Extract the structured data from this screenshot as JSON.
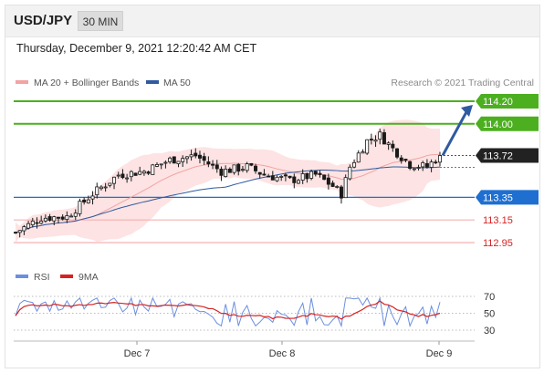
{
  "header": {
    "pair": "USD/JPY",
    "interval": "30 MIN",
    "datetime": "Thursday, December 9, 2021 12:20:42 AM CET"
  },
  "legend": {
    "ma20_bb": "MA 20 + Bollinger Bands",
    "ma50": "MA 50",
    "credit": "Research © 2021 Trading Central",
    "rsi": "RSI",
    "rsi_ma": "9MA"
  },
  "colors": {
    "resistance": "#4caf1f",
    "support": "#1f6fd0",
    "target_line": "#f4b2b2",
    "candle": "#1a1a1a",
    "ma20": "#f2a3a3",
    "ma50": "#2f5aa0",
    "bollinger_fill": "#fde3e3",
    "rsi": "#6b8fe0",
    "rsi_ma": "#d62222",
    "last_price_box": "#222222"
  },
  "chart_data": [
    {
      "type": "candlestick",
      "x_ticks": [
        "Dec 7",
        "Dec 8",
        "Dec 9"
      ],
      "ylim": [
        112.82,
        114.28
      ],
      "last_price": 113.72,
      "levels": [
        {
          "label": "114.20",
          "value": 114.2,
          "kind": "resistance"
        },
        {
          "label": "114.00",
          "value": 114.0,
          "kind": "resistance"
        },
        {
          "label": "113.35",
          "value": 113.35,
          "kind": "support"
        },
        {
          "label": "113.15",
          "value": 113.15,
          "kind": "support"
        },
        {
          "label": "112.95",
          "value": 112.95,
          "kind": "support"
        }
      ],
      "last_price_label": "113.72",
      "forecast_arrow": {
        "from_value": 113.72,
        "to_value": 114.2
      },
      "series": [
        {
          "name": "MA 20 + Bollinger Bands"
        },
        {
          "name": "MA 50"
        }
      ]
    },
    {
      "type": "line",
      "ylim": [
        20,
        80
      ],
      "y_ticks": [
        {
          "label": "70",
          "value": 70
        },
        {
          "label": "50",
          "value": 50
        },
        {
          "label": "30",
          "value": 30
        }
      ],
      "series": [
        {
          "name": "RSI"
        },
        {
          "name": "9MA"
        }
      ]
    }
  ]
}
